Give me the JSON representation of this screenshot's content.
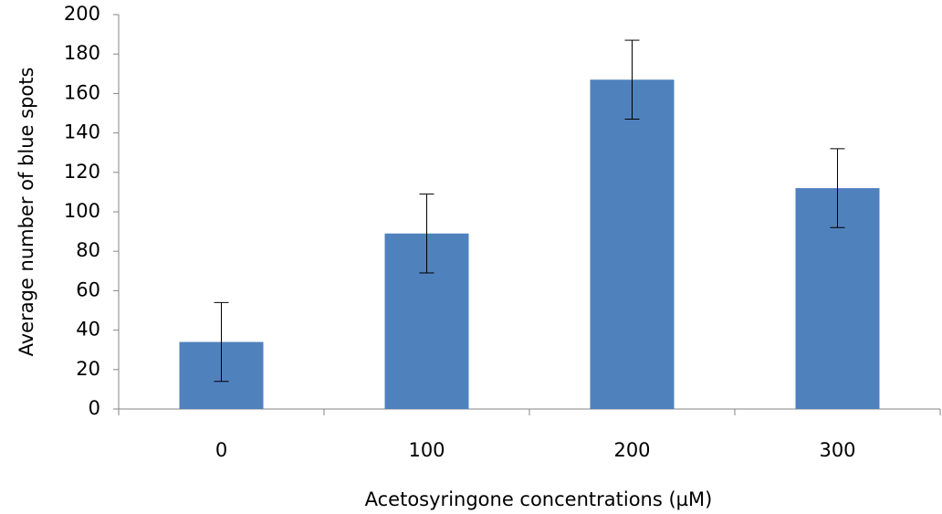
{
  "chart_data": {
    "type": "bar",
    "xlabel": "Acetosyringone concentrations (µM)",
    "ylabel": "Average number of blue spots",
    "categories": [
      "0",
      "100",
      "200",
      "300"
    ],
    "values": [
      34,
      89,
      167,
      112
    ],
    "errors": [
      20,
      20,
      20,
      20
    ],
    "color": "#4f81bd",
    "ylim": [
      0,
      200
    ],
    "yticks": [
      0,
      20,
      40,
      60,
      80,
      100,
      120,
      140,
      160,
      180,
      200
    ],
    "grid": false
  }
}
